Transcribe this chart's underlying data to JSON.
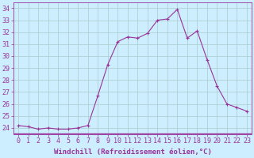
{
  "x": [
    0,
    1,
    2,
    3,
    4,
    5,
    6,
    7,
    8,
    9,
    10,
    11,
    12,
    13,
    14,
    15,
    16,
    17,
    18,
    19,
    20,
    21,
    22,
    23
  ],
  "y": [
    24.2,
    24.1,
    23.9,
    24.0,
    23.9,
    23.9,
    24.0,
    24.2,
    26.7,
    29.3,
    31.2,
    31.6,
    31.5,
    31.9,
    33.0,
    33.1,
    33.9,
    31.5,
    32.1,
    29.7,
    27.5,
    26.0,
    25.7,
    25.4
  ],
  "line_color": "#993399",
  "marker": "+",
  "marker_size": 3,
  "bg_color": "#cceeff",
  "grid_color": "#aacccc",
  "xlabel": "Windchill (Refroidissement éolien,°C)",
  "xlabel_fontsize": 6.5,
  "ylabel_ticks": [
    24,
    25,
    26,
    27,
    28,
    29,
    30,
    31,
    32,
    33,
    34
  ],
  "xticks": [
    0,
    1,
    2,
    3,
    4,
    5,
    6,
    7,
    8,
    9,
    10,
    11,
    12,
    13,
    14,
    15,
    16,
    17,
    18,
    19,
    20,
    21,
    22,
    23
  ],
  "ylim": [
    23.5,
    34.5
  ],
  "xlim": [
    -0.5,
    23.5
  ],
  "tick_fontsize": 6,
  "line_width": 0.8
}
